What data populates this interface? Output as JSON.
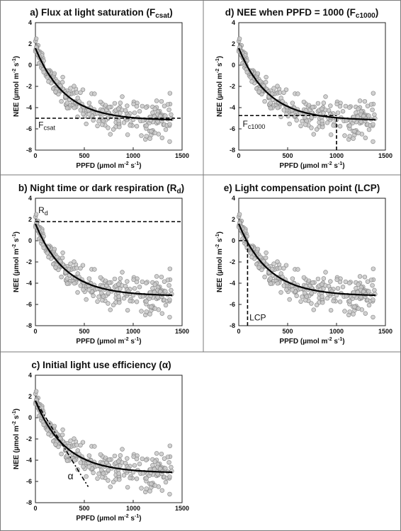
{
  "panel_titles": [
    {
      "main": "a) Flux at light saturation (F",
      "sub": "csat",
      "tail": ")"
    },
    {
      "main": "b) Night time or dark respiration (R",
      "sub": "d",
      "tail": ")"
    },
    {
      "main": "c) Initial light use efficiency (",
      "sub": "",
      "tail": "α)"
    },
    {
      "main": "d) NEE when PPFD = 1000 (F",
      "sub": "c1000",
      "tail": ")"
    },
    {
      "main": "e) Light compensation point (LCP)",
      "sub": "",
      "tail": ""
    }
  ],
  "axis": {
    "xlabel_main": "PPFD (µmol m",
    "xlabel_exp1": "-2",
    "xlabel_mid": " s",
    "xlabel_exp2": "-1",
    "xlabel_tail": ")",
    "ylabel_main": "NEE (µmol m",
    "ylabel_exp1": "-2",
    "ylabel_mid": " s",
    "ylabel_exp2": "-1",
    "ylabel_tail": ")"
  },
  "chart_data": [
    {
      "type": "scatter",
      "panel": "a",
      "xlim": [
        0,
        1500
      ],
      "ylim": [
        -8,
        4
      ],
      "xticks": [
        0,
        500,
        1000,
        1500
      ],
      "yticks": [
        -8,
        -6,
        -4,
        -2,
        0,
        2,
        4
      ],
      "fit_curve": {
        "asymptote": -5.2,
        "intercept": 1.6,
        "decay_per_umol": 0.0033,
        "x_range": [
          0,
          1400
        ]
      },
      "reference_lines": [
        {
          "kind": "horizontal",
          "y": -5.0,
          "x_range": [
            0,
            1500
          ],
          "style": "dashed"
        }
      ],
      "annotation": {
        "main": "F",
        "sub": "csat",
        "x": 30,
        "y": -5.9
      }
    },
    {
      "type": "scatter",
      "panel": "b",
      "xlim": [
        0,
        1500
      ],
      "ylim": [
        -8,
        4
      ],
      "xticks": [
        0,
        500,
        1000,
        1500
      ],
      "yticks": [
        -8,
        -6,
        -4,
        -2,
        0,
        2,
        4
      ],
      "fit_curve": {
        "asymptote": -5.2,
        "intercept": 1.6,
        "decay_per_umol": 0.0033,
        "x_range": [
          0,
          1400
        ]
      },
      "reference_lines": [
        {
          "kind": "horizontal",
          "y": 1.8,
          "x_range": [
            0,
            1500
          ],
          "style": "dashed"
        }
      ],
      "annotation": {
        "main": "R",
        "sub": "d",
        "x": 30,
        "y": 2.6
      }
    },
    {
      "type": "scatter",
      "panel": "c",
      "xlim": [
        0,
        1500
      ],
      "ylim": [
        -8,
        4
      ],
      "xticks": [
        0,
        500,
        1000,
        1500
      ],
      "yticks": [
        -8,
        -6,
        -4,
        -2,
        0,
        2,
        4
      ],
      "fit_curve": {
        "asymptote": -5.2,
        "intercept": 1.6,
        "decay_per_umol": 0.0033,
        "x_range": [
          0,
          1400
        ]
      },
      "reference_lines": [
        {
          "kind": "slope",
          "points": [
            [
              0,
              1.6
            ],
            [
              540,
              -6.5
            ]
          ],
          "style": "dash-dot"
        }
      ],
      "annotation": {
        "main": "α",
        "sub": "",
        "x": 330,
        "y": -5.8
      }
    },
    {
      "type": "scatter",
      "panel": "d",
      "xlim": [
        0,
        1500
      ],
      "ylim": [
        -8,
        4
      ],
      "xticks": [
        0,
        500,
        1000,
        1500
      ],
      "yticks": [
        -8,
        -6,
        -4,
        -2,
        0,
        2,
        4
      ],
      "fit_curve": {
        "asymptote": -5.2,
        "intercept": 1.6,
        "decay_per_umol": 0.0033,
        "x_range": [
          0,
          1400
        ]
      },
      "reference_lines": [
        {
          "kind": "horizontal",
          "y": -4.75,
          "x_range": [
            0,
            1000
          ],
          "style": "dashed"
        },
        {
          "kind": "vertical",
          "x": 1000,
          "y_range": [
            -8,
            -4.75
          ],
          "style": "dashed"
        }
      ],
      "annotation": {
        "main": "F",
        "sub": "c1000",
        "x": 40,
        "y": -5.8
      }
    },
    {
      "type": "scatter",
      "panel": "e",
      "xlim": [
        0,
        1500
      ],
      "ylim": [
        -8,
        4
      ],
      "xticks": [
        0,
        500,
        1000,
        1500
      ],
      "yticks": [
        -8,
        -6,
        -4,
        -2,
        0,
        2,
        4
      ],
      "fit_curve": {
        "asymptote": -5.2,
        "intercept": 1.6,
        "decay_per_umol": 0.0033,
        "x_range": [
          0,
          1400
        ]
      },
      "reference_lines": [
        {
          "kind": "horizontal",
          "y": 0,
          "x_range": [
            0,
            90
          ],
          "style": "dashed"
        },
        {
          "kind": "vertical",
          "x": 90,
          "y_range": [
            -8,
            0
          ],
          "style": "dashed"
        }
      ],
      "annotation": {
        "main": "LCP",
        "sub": "",
        "x": 110,
        "y": -7.5
      }
    }
  ]
}
